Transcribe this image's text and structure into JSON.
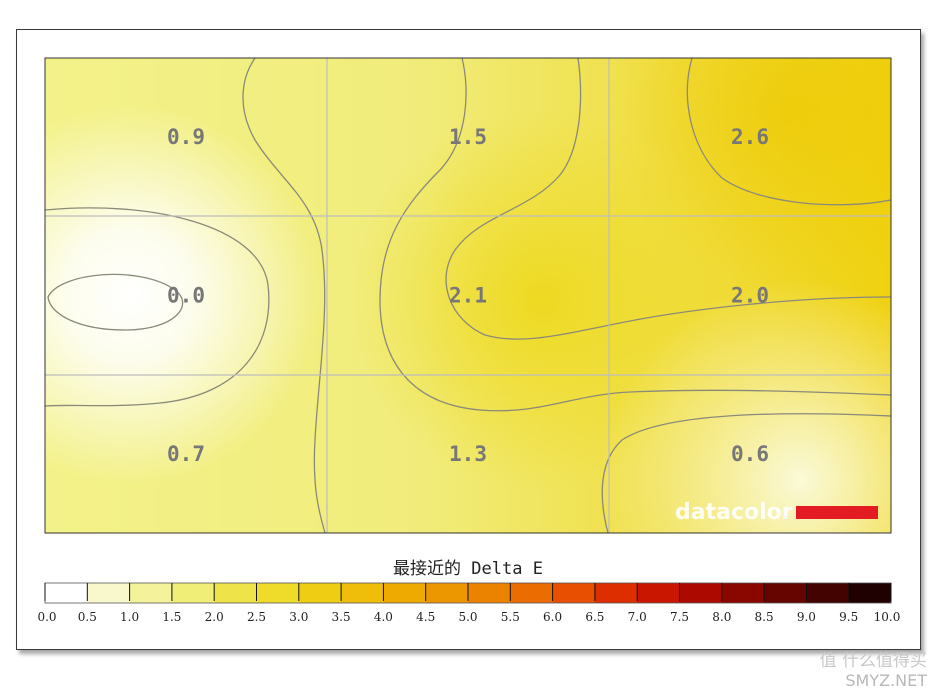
{
  "chart_data": {
    "type": "heatmap",
    "title": "最接近的 Delta E",
    "grid": {
      "rows": 3,
      "cols": 3
    },
    "values": [
      [
        0.9,
        1.5,
        2.6
      ],
      [
        0.0,
        2.1,
        2.0
      ],
      [
        0.7,
        1.3,
        0.6
      ]
    ],
    "value_labels": [
      [
        "0.9",
        "1.5",
        "2.6"
      ],
      [
        "0.0",
        "2.1",
        "2.0"
      ],
      [
        "0.7",
        "1.3",
        "0.6"
      ]
    ],
    "colorbar": {
      "min": 0.0,
      "max": 10.0,
      "step": 0.5,
      "tick_labels": [
        "0.0",
        "0.5",
        "1.0",
        "1.5",
        "2.0",
        "2.5",
        "3.0",
        "3.5",
        "4.0",
        "4.5",
        "5.0",
        "5.5",
        "6.0",
        "6.5",
        "7.0",
        "7.5",
        "8.0",
        "8.5",
        "9.0",
        "9.5",
        "10.0"
      ],
      "colors": [
        "#ffffff",
        "#f9f7cc",
        "#f4f29a",
        "#f1ee78",
        "#eee44a",
        "#eedb2a",
        "#eecd12",
        "#eebe0a",
        "#eeaa00",
        "#ed9700",
        "#ec8300",
        "#eb6c00",
        "#e85000",
        "#dd2e00",
        "#c81600",
        "#ac0a00",
        "#8a0700",
        "#660500",
        "#430300",
        "#1e0100"
      ]
    },
    "logo": {
      "text": "datacolor",
      "bar_color": "#e31b23"
    }
  },
  "watermark": {
    "line1": "值 什么值得买",
    "line2": "SMYZ.NET"
  }
}
